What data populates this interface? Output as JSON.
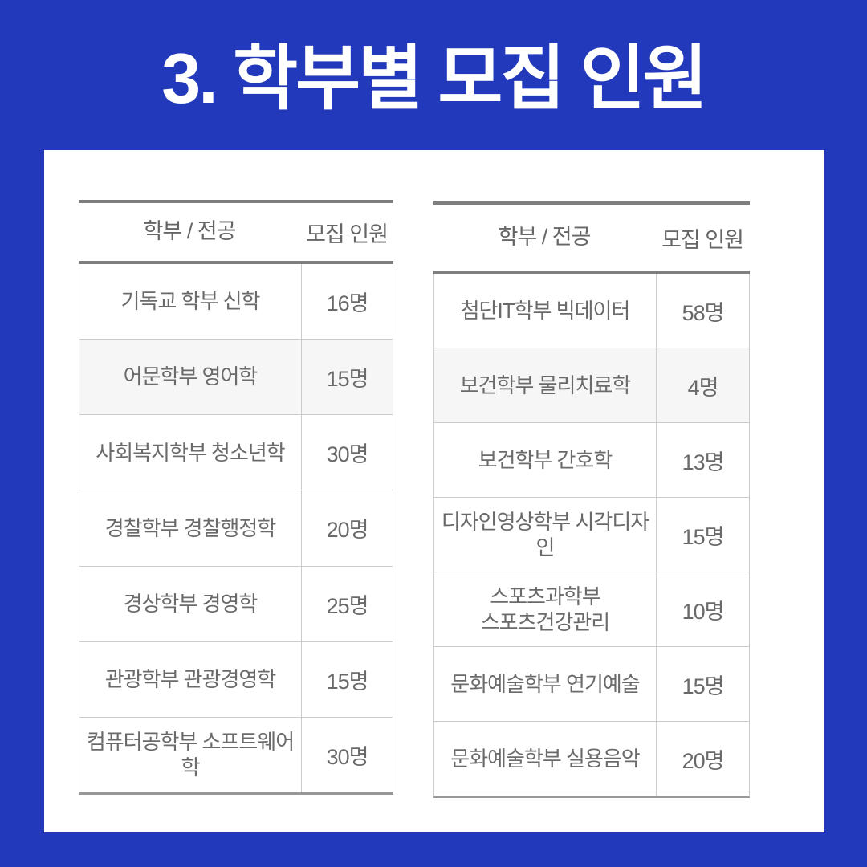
{
  "title": "3. 학부별 모집 인원",
  "colors": {
    "background_blue": "#2239BB",
    "card_white": "#FFFFFF",
    "title_white": "#FFFFFF",
    "border_dark_gray": "#7E7E7E",
    "border_light_gray": "#CBCBCB",
    "border_bottom_gray": "#979797",
    "text_gray": "#6A6A6A",
    "shaded_row_bg": "#F6F6F6"
  },
  "tables": [
    {
      "id": "left",
      "headers": {
        "name": "학부 / 전공",
        "count": "모집 인원"
      },
      "rows": [
        {
          "name": "기독교 학부 신학",
          "count": "16명",
          "shaded": false
        },
        {
          "name": "어문학부 영어학",
          "count": "15명",
          "shaded": true
        },
        {
          "name": "사회복지학부 청소년학",
          "count": "30명",
          "shaded": false
        },
        {
          "name": "경찰학부 경찰행정학",
          "count": "20명",
          "shaded": false
        },
        {
          "name": "경상학부 경영학",
          "count": "25명",
          "shaded": false
        },
        {
          "name": "관광학부 관광경영학",
          "count": "15명",
          "shaded": false
        },
        {
          "name": "컴퓨터공학부 소프트웨어학",
          "count": "30명",
          "shaded": false
        }
      ]
    },
    {
      "id": "right",
      "headers": {
        "name": "학부 / 전공",
        "count": "모집 인원"
      },
      "rows": [
        {
          "name": "첨단IT학부 빅데이터",
          "count": "58명",
          "shaded": false
        },
        {
          "name": "보건학부 물리치료학",
          "count": "4명",
          "shaded": true
        },
        {
          "name": "보건학부 간호학",
          "count": "13명",
          "shaded": false
        },
        {
          "name": "디자인영상학부 시각디자인",
          "count": "15명",
          "shaded": false
        },
        {
          "name": "스포츠과학부\n스포츠건강관리",
          "count": "10명",
          "shaded": false
        },
        {
          "name": "문화예술학부 연기예술",
          "count": "15명",
          "shaded": false
        },
        {
          "name": "문화예술학부 실용음악",
          "count": "20명",
          "shaded": false
        }
      ]
    }
  ]
}
